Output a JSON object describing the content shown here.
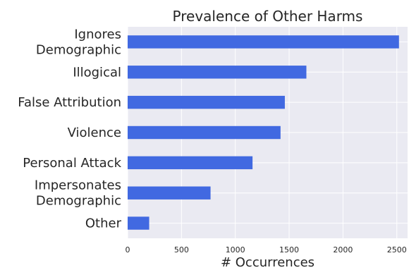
{
  "chart_data": {
    "type": "bar",
    "orientation": "horizontal",
    "title": "Prevalence of Other Harms",
    "xlabel": "# Occurrences",
    "ylabel": "",
    "categories": [
      [
        "Ignores",
        "Demographic"
      ],
      [
        "Illogical"
      ],
      [
        "False Attribution"
      ],
      [
        "Violence"
      ],
      [
        "Personal Attack"
      ],
      [
        "Impersonates",
        "Demographic"
      ],
      [
        "Other"
      ]
    ],
    "values": [
      2520,
      1660,
      1460,
      1420,
      1160,
      770,
      200
    ],
    "xlim": [
      0,
      2600
    ],
    "xticks": [
      0,
      500,
      1000,
      1500,
      2000,
      2500
    ],
    "grid": true,
    "bar_color": "#4169e1",
    "background_color": "#eaeaf2",
    "grid_color": "#ffffff"
  }
}
